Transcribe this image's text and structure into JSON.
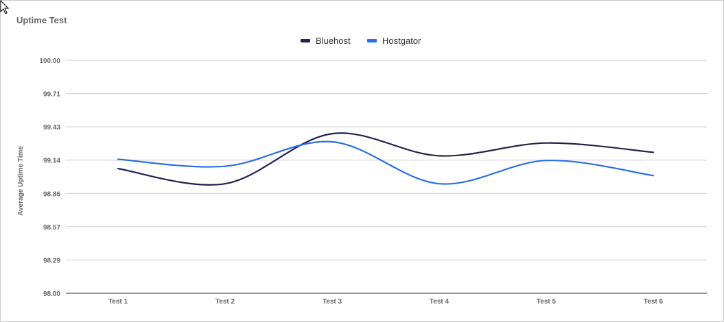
{
  "chart_data": {
    "type": "line",
    "title": "Uptime Test",
    "xlabel": "",
    "ylabel": "Average Uptime Time",
    "categories": [
      "Test 1",
      "Test 2",
      "Test 3",
      "Test 4",
      "Test 5",
      "Test 6"
    ],
    "ylim": [
      98.0,
      100.0
    ],
    "yticks": [
      "100.00",
      "99.71",
      "99.43",
      "99.14",
      "98.86",
      "98.57",
      "98.29",
      "98.00"
    ],
    "legend_position": "top-center",
    "grid": true,
    "series": [
      {
        "name": "Bluehost",
        "color": "#24214f",
        "values": [
          99.07,
          98.94,
          99.37,
          99.18,
          99.29,
          99.21
        ]
      },
      {
        "name": "Hostgator",
        "color": "#2a6ee8",
        "values": [
          99.15,
          99.09,
          99.3,
          98.94,
          99.14,
          99.01
        ]
      }
    ]
  }
}
